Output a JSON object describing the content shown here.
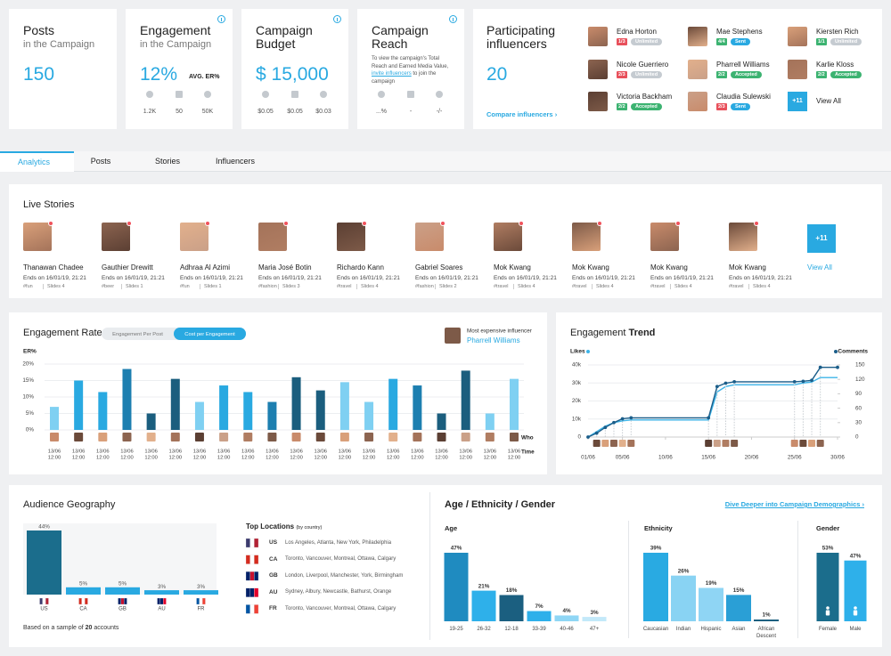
{
  "cards": [
    {
      "title": [
        "Posts"
      ],
      "subtitle": "in the Campaign",
      "value": "150"
    },
    {
      "title": [
        "Engagement"
      ],
      "subtitle": "in the Campaign",
      "value": "12%",
      "value_note": "AVG. ER%",
      "metrics": [
        "1.2K",
        "50",
        "50K"
      ]
    },
    {
      "title": [
        "Campaign",
        "Budget"
      ],
      "value": "$ 15,000",
      "metrics": [
        "$0.05",
        "$0.05",
        "$0.03"
      ]
    },
    {
      "title": [
        "Campaign",
        "Reach"
      ],
      "note": {
        "before": "To view the campaign's Total Reach and Earned Media Value, ",
        "link": "invite influencers",
        "after": " to join the campaign"
      },
      "metrics": [
        "...%",
        "-",
        "-/-"
      ]
    }
  ],
  "influencers_card": {
    "title": [
      "Participating",
      "influencers"
    ],
    "value": "20",
    "link": "Compare influencers ›",
    "people": [
      {
        "name": "Edna Horton",
        "count": "1/3",
        "count_color": "#e8505b",
        "status": "Unlimited",
        "status_color": "#c5cbd1"
      },
      {
        "name": "Mae Stephens",
        "count": "4/4",
        "count_color": "#3cb371",
        "status": "Sent",
        "status_color": "#29a9e1"
      },
      {
        "name": "Kiersten Rich",
        "count": "1/1",
        "count_color": "#3cb371",
        "status": "Unlimited",
        "status_color": "#c5cbd1"
      },
      {
        "name": "Nicole Guerriero",
        "count": "2/3",
        "count_color": "#e8505b",
        "status": "Unlimited",
        "status_color": "#c5cbd1"
      },
      {
        "name": "Pharrell Williams",
        "count": "2/2",
        "count_color": "#3cb371",
        "status": "Accepted",
        "status_color": "#3cb371"
      },
      {
        "name": "Karlie Kloss",
        "count": "2/2",
        "count_color": "#3cb371",
        "status": "Accepted",
        "status_color": "#3cb371"
      },
      {
        "name": "Victoria Backham",
        "count": "2/2",
        "count_color": "#3cb371",
        "status": "Accepted",
        "status_color": "#3cb371"
      },
      {
        "name": "Claudia Sulewski",
        "count": "2/3",
        "count_color": "#e8505b",
        "status": "Sent",
        "status_color": "#29a9e1"
      }
    ],
    "more": "+11",
    "view_all": "View All"
  },
  "tabs": {
    "items": [
      "Analytics",
      "Posts",
      "Stories",
      "Influencers"
    ],
    "active": 0
  },
  "live_stories": {
    "title": "Live Stories",
    "stories": [
      {
        "name": "Thanawan Chadee",
        "ends": "Ends on 16/01/19, 21:21",
        "tag": "#fun",
        "slides": "Slides 4"
      },
      {
        "name": "Gauthier Drewitt",
        "ends": "Ends on 16/01/19, 21:21",
        "tag": "#beer",
        "slides": "Slides 1"
      },
      {
        "name": "Adhraa Al Azimi",
        "ends": "Ends on 16/01/19, 21:21",
        "tag": "#fun",
        "slides": "Slides 1"
      },
      {
        "name": "Maria José Botin",
        "ends": "Ends on 16/01/19, 21:21",
        "tag": "#fashion",
        "slides": "Slides 3"
      },
      {
        "name": "Richardo Kann",
        "ends": "Ends on 16/01/19, 21:21",
        "tag": "#travel",
        "slides": "Slides 4"
      },
      {
        "name": "Gabriel Soares",
        "ends": "Ends on 16/01/19, 21:21",
        "tag": "#fashion",
        "slides": "Slides 2"
      },
      {
        "name": "Mok Kwang",
        "ends": "Ends on 16/01/19, 21:21",
        "tag": "#travel",
        "slides": "Slides 4"
      },
      {
        "name": "Mok Kwang",
        "ends": "Ends on 16/01/19, 21:21",
        "tag": "#travel",
        "slides": "Slides 4"
      },
      {
        "name": "Mok Kwang",
        "ends": "Ends on 16/01/19, 21:21",
        "tag": "#travel",
        "slides": "Slides 4"
      },
      {
        "name": "Mok Kwang",
        "ends": "Ends on 16/01/19, 21:21",
        "tag": "#travel",
        "slides": "Slides 4"
      }
    ],
    "more": "+11",
    "view_all": "View All"
  },
  "engagement_rate": {
    "type": "bar",
    "title": "Engagement Rate",
    "toggle": [
      "Engagement Per Post",
      "Cost per Engagement"
    ],
    "toggle_active": 1,
    "top_influencer_label": "Most expensive influencer",
    "top_influencer": "Pharrell Williams",
    "y_label": "ER%",
    "who_label": "Who",
    "time_label": "Time",
    "dates": [
      "13/06",
      "13/06",
      "13/06",
      "13/06",
      "13/06",
      "13/06",
      "13/06",
      "13/06",
      "13/06",
      "13/06",
      "13/06",
      "13/06",
      "13/06",
      "13/06",
      "13/06",
      "13/06",
      "13/06",
      "13/06",
      "13/06",
      "13/06"
    ],
    "times": [
      "12:00",
      "12:00",
      "12:00",
      "12:00",
      "12:00",
      "12:00",
      "12:00",
      "12:00",
      "12:00",
      "12:00",
      "12:00",
      "12:00",
      "12:00",
      "12:00",
      "12:00",
      "12:00",
      "12:00",
      "12:00",
      "12:00",
      "12:00"
    ],
    "values": [
      7,
      15,
      11.5,
      18.5,
      5,
      15.5,
      8.5,
      13.5,
      11.5,
      8.5,
      16,
      12,
      14.5,
      8.5,
      15.5,
      13.5,
      5,
      18,
      5,
      15.5
    ],
    "colors": [
      "#7fd0f2",
      "#29a9e1",
      "#29a9e1",
      "#1d7fb0",
      "#1b5e7e",
      "#1b5e7e",
      "#7fd0f2",
      "#29a9e1",
      "#29a9e1",
      "#1d7fb0",
      "#1b5e7e",
      "#1b5e7e",
      "#7fd0f2",
      "#7fd0f2",
      "#29a9e1",
      "#1d7fb0",
      "#1b5e7e",
      "#1b5e7e",
      "#7fd0f2",
      "#7fd0f2"
    ],
    "ylim": [
      0,
      20
    ],
    "yticks": [
      {
        "value": 0,
        "label": "0%"
      },
      {
        "value": 5,
        "label": "5%"
      },
      {
        "value": 10,
        "label": "10%"
      },
      {
        "value": 15,
        "label": "15%"
      },
      {
        "value": 20,
        "label": "20%"
      }
    ],
    "grid": true
  },
  "engagement_trend": {
    "type": "line",
    "title": "Engagement",
    "title_bold": "Trend",
    "xlim": [
      1,
      30
    ],
    "xticks": [
      {
        "value": 1,
        "label": "01/06"
      },
      {
        "value": 5,
        "label": "05/06"
      },
      {
        "value": 10,
        "label": "10/06"
      },
      {
        "value": 15,
        "label": "15/06"
      },
      {
        "value": 20,
        "label": "20/06"
      },
      {
        "value": 25,
        "label": "25/06"
      },
      {
        "value": 30,
        "label": "30/06"
      }
    ],
    "ylim": [
      0,
      40000
    ],
    "yticks": [
      0,
      {
        "value": 10000,
        "label": "10k"
      },
      {
        "value": 20000,
        "label": "20k"
      },
      {
        "value": 30000,
        "label": "30k"
      },
      {
        "value": 40000,
        "label": "40k"
      }
    ],
    "y2lim": [
      0,
      150
    ],
    "y2ticks": [
      0,
      30,
      60,
      90,
      120,
      150
    ],
    "grid": true,
    "series": [
      {
        "name": "Likes",
        "color": "#3db4e8",
        "markers": false,
        "x": [
          1,
          2,
          3,
          4,
          5,
          6,
          15,
          16,
          17,
          18,
          25,
          26,
          27,
          28,
          30
        ],
        "values": [
          0,
          3000,
          6000,
          8000,
          9000,
          9500,
          9500,
          25000,
          28000,
          29000,
          29000,
          30000,
          30500,
          33000,
          33000
        ]
      },
      {
        "name": "Comments",
        "color": "#1b5e8a",
        "axis": "y2",
        "markers": true,
        "x": [
          1,
          2,
          3,
          4,
          5,
          6,
          15,
          16,
          17,
          18,
          25,
          26,
          27,
          28,
          30
        ],
        "values": [
          0,
          8,
          20,
          30,
          38,
          40,
          40,
          105,
          112,
          115,
          115,
          116,
          118,
          145,
          145
        ]
      }
    ]
  },
  "audience_geography": {
    "type": "bar",
    "title": "Audience Geography",
    "categories": [
      "US",
      "CA",
      "GB",
      "AU",
      "FR"
    ],
    "values": [
      44,
      5,
      5,
      3,
      3
    ],
    "value_labels": [
      "44%",
      "5%",
      "5%",
      "3%",
      "3%"
    ],
    "colors": [
      "#1b6d8c",
      "#29a9e1",
      "#29a9e1",
      "#29a9e1",
      "#29a9e1"
    ],
    "flag_colors": [
      [
        "#3c3b6e",
        "#ffffff",
        "#b22234"
      ],
      [
        "#d52b1e",
        "#ffffff",
        "#d52b1e"
      ],
      [
        "#012169",
        "#c8102e",
        "#012169"
      ],
      [
        "#012169",
        "#012169",
        "#e4002b"
      ],
      [
        "#0055a4",
        "#ffffff",
        "#ef4135"
      ]
    ],
    "locations_title": "Top Locations",
    "locations_note": "(by country)",
    "locations": [
      {
        "code": "US",
        "cities": "Los Angeles, Atlanta, New York, Philadelphia"
      },
      {
        "code": "CA",
        "cities": "Toronto, Vancouver, Montreal, Ottawa, Calgary"
      },
      {
        "code": "GB",
        "cities": "London, Liverpool, Manchester, York, Birmingham"
      },
      {
        "code": "AU",
        "cities": "Sydney, Albury, Newcastle, Bathurst, Orange"
      },
      {
        "code": "FR",
        "cities": "Toronto, Vancouver, Montreal, Ottawa, Calgary"
      }
    ],
    "sample": {
      "before": "Based on a sample of ",
      "count": "20",
      "after": " accounts"
    }
  },
  "demographics": {
    "title": "Age / Ethnicity / Gender",
    "link": "Dive Deeper into Campaign Demographics ›",
    "groups": [
      {
        "type": "bar",
        "title": "Age",
        "categories": [
          "19-25",
          "26-32",
          "12-18",
          "33-39",
          "40-46",
          "47+"
        ],
        "values": [
          47,
          21,
          18,
          7,
          4,
          3
        ],
        "value_labels": [
          "47%",
          "21%",
          "18%",
          "7%",
          "4%",
          "3%"
        ],
        "colors": [
          "#1f8bc0",
          "#2eb0ea",
          "#1b5f80",
          "#2eb0ea",
          "#8fd6f5",
          "#c3e9f9"
        ]
      },
      {
        "type": "bar",
        "title": "Ethnicity",
        "categories": [
          "Caucasian",
          "Indian",
          "Hispanic",
          "Asian",
          "African Descent"
        ],
        "values": [
          39,
          26,
          19,
          15,
          1
        ],
        "value_labels": [
          "39%",
          "26%",
          "19%",
          "15%",
          "1%"
        ],
        "colors": [
          "#29aae2",
          "#89d3f3",
          "#8fd5f4",
          "#2a9fd6",
          "#1b5e7e"
        ]
      },
      {
        "type": "bar",
        "title": "Gender",
        "categories": [
          "Female",
          "Male"
        ],
        "values": [
          53,
          47
        ],
        "value_labels": [
          "53%",
          "47%"
        ],
        "colors": [
          "#1b6d8c",
          "#2eb0ea"
        ]
      }
    ]
  }
}
